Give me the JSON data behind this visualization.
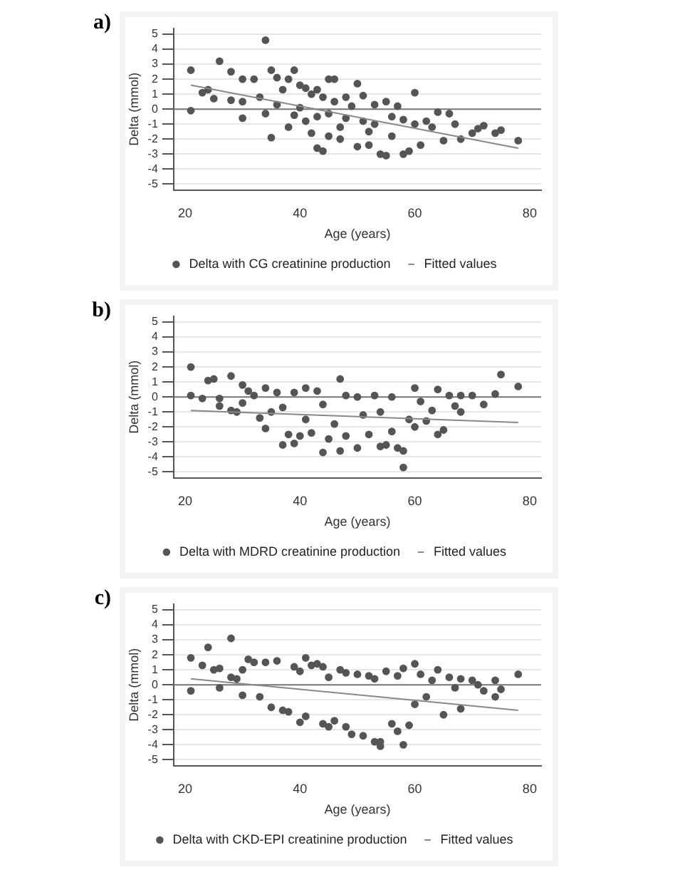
{
  "chart_data": [
    {
      "type": "scatter",
      "title": "a)",
      "xlabel": "Age (years)",
      "ylabel": "Delta (mmol)",
      "xlim": [
        18,
        82
      ],
      "xticks": [
        20,
        40,
        60,
        80
      ],
      "ylim": [
        -5.4,
        5.4
      ],
      "yticks": [
        -5,
        -4,
        -3,
        -2,
        -1,
        0,
        1,
        2,
        3,
        4,
        5
      ],
      "grid": "y",
      "legend": "bottom",
      "ref_lines": [
        {
          "axis": "y",
          "value": 0,
          "color": "#777777"
        }
      ],
      "series": [
        {
          "name": "Delta with CG creatinine production",
          "marker": "circle",
          "color": "#555555",
          "x": [
            21,
            21,
            23,
            24,
            25,
            26,
            28,
            28,
            30,
            30,
            30,
            32,
            33,
            34,
            34,
            35,
            35,
            36,
            36,
            37,
            38,
            38,
            39,
            39,
            40,
            40,
            41,
            41,
            42,
            42,
            43,
            43,
            43,
            44,
            44,
            45,
            45,
            45,
            46,
            46,
            47,
            47,
            48,
            48,
            49,
            50,
            50,
            51,
            51,
            52,
            52,
            53,
            53,
            54,
            55,
            55,
            56,
            56,
            57,
            58,
            58,
            59,
            60,
            60,
            61,
            62,
            63,
            64,
            65,
            66,
            67,
            68,
            70,
            71,
            72,
            74,
            75,
            78
          ],
          "values": [
            2.6,
            -0.1,
            1.1,
            1.3,
            0.7,
            3.2,
            2.5,
            0.6,
            2.0,
            -0.6,
            0.5,
            2.0,
            0.8,
            4.6,
            -0.3,
            2.6,
            -1.9,
            2.1,
            0.3,
            1.3,
            2.0,
            -1.2,
            2.6,
            -0.4,
            1.6,
            0.1,
            1.4,
            -0.8,
            1.0,
            -1.6,
            1.3,
            -0.5,
            -2.6,
            0.8,
            -2.8,
            2.0,
            -0.3,
            -1.8,
            2.0,
            0.5,
            -1.2,
            -2.0,
            0.8,
            -0.6,
            0.2,
            1.7,
            -2.5,
            -0.8,
            0.9,
            -1.5,
            -2.4,
            0.3,
            -1.0,
            -3.0,
            -3.1,
            0.5,
            -0.5,
            -1.8,
            0.2,
            -3.0,
            -0.7,
            -2.8,
            1.1,
            -1.0,
            -2.4,
            -0.8,
            -1.2,
            -0.2,
            -2.1,
            -0.3,
            -1.0,
            -2.0,
            -1.6,
            -1.3,
            -1.1,
            -1.6,
            -1.4,
            -2.1
          ]
        },
        {
          "name": "Fitted values",
          "type": "line",
          "color": "#888888",
          "x": [
            21,
            78
          ],
          "marker": "none",
          "values": [
            1.6,
            -2.6
          ]
        }
      ]
    },
    {
      "type": "scatter",
      "title": "b)",
      "xlabel": "Age (years)",
      "ylabel": "Delta (mmol)",
      "xlim": [
        18,
        82
      ],
      "xticks": [
        20,
        40,
        60,
        80
      ],
      "ylim": [
        -5.4,
        5.4
      ],
      "yticks": [
        -5,
        -4,
        -3,
        -2,
        -1,
        0,
        1,
        2,
        3,
        4,
        5
      ],
      "grid": "y",
      "legend": "bottom",
      "ref_lines": [
        {
          "axis": "y",
          "value": 0,
          "color": "#777777"
        }
      ],
      "series": [
        {
          "name": "Delta with MDRD creatinine production",
          "marker": "circle",
          "color": "#555555",
          "x": [
            21,
            21,
            23,
            24,
            25,
            26,
            26,
            28,
            28,
            29,
            30,
            30,
            31,
            32,
            33,
            34,
            34,
            35,
            36,
            37,
            37,
            38,
            39,
            39,
            40,
            41,
            41,
            42,
            43,
            44,
            44,
            45,
            46,
            47,
            47,
            48,
            48,
            50,
            50,
            51,
            52,
            53,
            54,
            54,
            55,
            56,
            56,
            57,
            58,
            58,
            59,
            60,
            60,
            61,
            62,
            63,
            64,
            64,
            65,
            66,
            67,
            68,
            68,
            70,
            72,
            74,
            75,
            78
          ],
          "values": [
            2.0,
            0.1,
            -0.1,
            1.1,
            1.2,
            -0.1,
            -0.6,
            1.4,
            -0.9,
            -1.0,
            0.8,
            -0.4,
            0.4,
            0.1,
            -1.4,
            0.6,
            -2.1,
            -1.0,
            0.3,
            -3.2,
            -0.7,
            -2.5,
            0.3,
            -3.1,
            -2.6,
            0.6,
            -1.5,
            -2.4,
            0.4,
            -3.7,
            -0.5,
            -2.8,
            -1.8,
            1.2,
            -3.6,
            0.1,
            -2.6,
            0.0,
            -3.4,
            -1.2,
            -2.5,
            0.1,
            -3.3,
            -1.0,
            -3.2,
            0.0,
            -2.3,
            -3.4,
            -3.6,
            -4.7,
            -1.5,
            0.6,
            -2.0,
            -0.3,
            -1.6,
            -0.9,
            0.5,
            -2.5,
            -2.2,
            0.1,
            -0.6,
            0.1,
            -1.0,
            0.1,
            -0.5,
            0.2,
            1.5,
            0.7
          ]
        },
        {
          "name": "Fitted values",
          "type": "line",
          "color": "#888888",
          "x": [
            21,
            78
          ],
          "marker": "none",
          "values": [
            -0.9,
            -1.7
          ]
        }
      ]
    },
    {
      "type": "scatter",
      "title": "c)",
      "xlabel": "Age (years)",
      "ylabel": "Delta (mmol)",
      "xlim": [
        18,
        82
      ],
      "xticks": [
        20,
        40,
        60,
        80
      ],
      "ylim": [
        -5.4,
        5.4
      ],
      "yticks": [
        -5,
        -4,
        -3,
        -2,
        -1,
        0,
        1,
        2,
        3,
        4,
        5
      ],
      "grid": "y",
      "legend": "bottom",
      "ref_lines": [
        {
          "axis": "y",
          "value": 0,
          "color": "#777777"
        }
      ],
      "series": [
        {
          "name": "Delta with CKD-EPI creatinine production",
          "marker": "circle",
          "color": "#555555",
          "x": [
            21,
            21,
            23,
            24,
            25,
            26,
            26,
            28,
            28,
            29,
            30,
            30,
            31,
            32,
            33,
            34,
            35,
            36,
            37,
            38,
            39,
            40,
            40,
            41,
            41,
            42,
            43,
            44,
            44,
            45,
            45,
            46,
            47,
            48,
            48,
            49,
            50,
            51,
            52,
            53,
            53,
            54,
            54,
            55,
            56,
            57,
            57,
            58,
            58,
            59,
            60,
            60,
            61,
            62,
            63,
            64,
            65,
            66,
            67,
            68,
            68,
            70,
            71,
            72,
            74,
            74,
            75,
            78
          ],
          "values": [
            1.8,
            -0.4,
            1.3,
            2.5,
            1.0,
            1.1,
            -0.2,
            3.1,
            0.5,
            0.4,
            1.0,
            -0.7,
            1.7,
            1.5,
            -0.8,
            1.5,
            -1.5,
            1.6,
            -1.7,
            -1.8,
            1.2,
            -2.5,
            0.9,
            1.8,
            -2.1,
            1.3,
            1.4,
            -2.6,
            1.2,
            -2.8,
            0.5,
            -2.4,
            1.0,
            -2.8,
            0.8,
            -3.3,
            0.7,
            -3.4,
            0.6,
            -3.8,
            0.4,
            -4.1,
            -3.8,
            0.9,
            -2.6,
            -3.1,
            0.6,
            -4.0,
            1.1,
            -2.7,
            1.4,
            -1.3,
            0.7,
            -0.8,
            0.3,
            1.0,
            -2.0,
            0.5,
            -0.2,
            0.4,
            -1.6,
            0.3,
            0.0,
            -0.4,
            0.3,
            -0.8,
            -0.3,
            0.7
          ]
        },
        {
          "name": "Fitted values",
          "type": "line",
          "color": "#888888",
          "x": [
            21,
            78
          ],
          "marker": "none",
          "values": [
            0.4,
            -1.7
          ]
        }
      ]
    }
  ]
}
